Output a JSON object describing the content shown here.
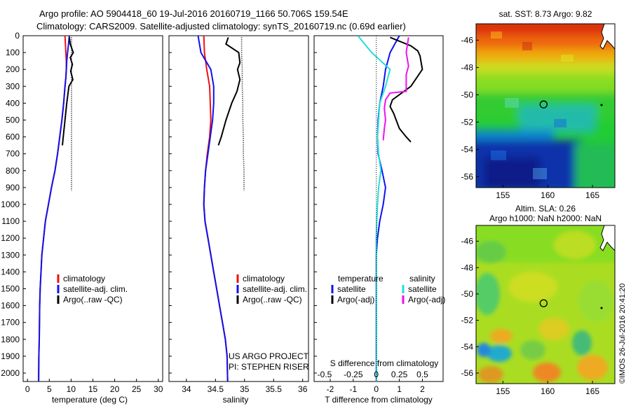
{
  "header": {
    "line1": "Argo profile: AO 5904418_60 19-Jul-2016 20160719_1166 50.706S 159.54E",
    "line2": "Climatology: CARS2009. Satellite-adjusted climatology: synTS_20160719.nc (0.69d earlier)"
  },
  "footer": {
    "project": "US ARGO PROJECT",
    "pi": "PI: STEPHEN RISER",
    "stamp": "©IMOS 26-Jul-2016 20:41:20"
  },
  "colors": {
    "climatology": "#ee1111",
    "satellite": "#1111ee",
    "argo": "#000000",
    "salinity_sat": "#22dddd",
    "salinity_argo": "#ee11ee"
  },
  "chart_data": [
    {
      "id": "temperature",
      "type": "line",
      "xlabel": "temperature (deg C)",
      "ylim": [
        2050,
        0
      ],
      "xlim": [
        -1,
        31
      ],
      "xticks": [
        0,
        5,
        10,
        15,
        20,
        25,
        30
      ],
      "yticks": [
        0,
        100,
        200,
        300,
        400,
        500,
        600,
        700,
        800,
        900,
        1000,
        1100,
        1200,
        1300,
        1400,
        1500,
        1600,
        1700,
        1800,
        1900,
        2000
      ],
      "legend": {
        "position": "center",
        "entries": [
          "climatology",
          "satellite-adj. clim.",
          "Argo(..raw -QC)"
        ]
      },
      "series": [
        {
          "name": "climatology",
          "color": "#ee1111",
          "style": "solid",
          "x": [
            8.6,
            8.7,
            8.8,
            8.9,
            8.9,
            8.8,
            8.6,
            8.3,
            7.9,
            7.4,
            6.9,
            6.3,
            5.5,
            4.8,
            4.1,
            3.7,
            3.3,
            3.1,
            2.9,
            2.8,
            2.7,
            2.6,
            2.55
          ],
          "y": [
            0,
            50,
            100,
            150,
            200,
            250,
            300,
            400,
            500,
            600,
            700,
            800,
            900,
            1000,
            1100,
            1200,
            1300,
            1400,
            1500,
            1600,
            1800,
            1900,
            2050
          ]
        },
        {
          "name": "satellite-adj. clim.",
          "color": "#1111ee",
          "style": "solid",
          "x": [
            9.6,
            9.4,
            9.2,
            9.0,
            8.9,
            8.8,
            8.6,
            8.3,
            7.9,
            7.4,
            6.9,
            6.3,
            5.5,
            4.8,
            4.1,
            3.7,
            3.3,
            3.1,
            2.9,
            2.8,
            2.7,
            2.6,
            2.55
          ],
          "y": [
            0,
            50,
            100,
            150,
            200,
            250,
            300,
            400,
            500,
            600,
            700,
            800,
            900,
            1000,
            1100,
            1200,
            1300,
            1400,
            1500,
            1600,
            1800,
            1900,
            2050
          ]
        },
        {
          "name": "Argo(..raw -QC)",
          "color": "#000000",
          "style": "solid",
          "x": [
            9.6,
            9.8,
            10.5,
            9.8,
            10.3,
            9.9,
            10.4,
            9.5,
            9.0,
            8.6,
            8.2,
            8.0
          ],
          "y": [
            10,
            50,
            100,
            130,
            170,
            210,
            260,
            300,
            400,
            500,
            600,
            650
          ]
        },
        {
          "name": "Argo(..raw -QC)",
          "color": "#000000",
          "style": "dotted",
          "x": [
            10.1,
            10.1,
            10.1,
            10.1,
            10.1,
            10.1,
            10.1,
            10.1,
            10.1,
            10.1
          ],
          "y": [
            10,
            100,
            200,
            300,
            400,
            500,
            600,
            700,
            800,
            920
          ]
        }
      ]
    },
    {
      "id": "salinity",
      "type": "line",
      "xlabel": "salinity",
      "ylim": [
        2050,
        0
      ],
      "xlim": [
        33.7,
        36.1
      ],
      "xticks": [
        34,
        34.5,
        35,
        35.5,
        36
      ],
      "legend": {
        "position": "center",
        "entries": [
          "climatology",
          "satellite-adj. clim.",
          "Argo(..raw -QC)"
        ]
      },
      "series": [
        {
          "name": "climatology",
          "color": "#ee1111",
          "style": "solid",
          "x": [
            34.3,
            34.31,
            34.35,
            34.4,
            34.41,
            34.42,
            34.4,
            34.36,
            34.33,
            34.31,
            34.3,
            34.32,
            34.37,
            34.42,
            34.47,
            34.52,
            34.57,
            34.62,
            34.67,
            34.7,
            34.71
          ],
          "y": [
            0,
            100,
            200,
            300,
            400,
            500,
            600,
            700,
            800,
            900,
            1000,
            1100,
            1200,
            1300,
            1400,
            1500,
            1600,
            1700,
            1800,
            1900,
            2050
          ]
        },
        {
          "name": "satellite-adj. clim.",
          "color": "#1111ee",
          "style": "solid",
          "x": [
            34.2,
            34.25,
            34.42,
            34.47,
            34.47,
            34.45,
            34.41,
            34.37,
            34.33,
            34.31,
            34.3,
            34.32,
            34.37,
            34.42,
            34.47,
            34.52,
            34.57,
            34.62,
            34.67,
            34.7,
            34.71
          ],
          "y": [
            0,
            100,
            200,
            300,
            400,
            500,
            600,
            700,
            800,
            900,
            1000,
            1100,
            1200,
            1300,
            1400,
            1500,
            1600,
            1700,
            1800,
            1900,
            2050
          ]
        },
        {
          "name": "Argo(..raw -QC)",
          "color": "#000000",
          "style": "solid",
          "x": [
            34.72,
            34.68,
            34.9,
            34.92,
            34.88,
            34.92,
            34.87,
            34.78,
            34.68,
            34.6,
            34.55
          ],
          "y": [
            10,
            50,
            100,
            160,
            200,
            260,
            330,
            400,
            500,
            600,
            650
          ]
        },
        {
          "name": "Argo(..raw -QC)",
          "color": "#000000",
          "style": "dotted",
          "x": [
            34.95,
            34.95,
            34.96,
            34.96,
            34.97,
            34.97,
            34.98,
            34.98,
            34.99,
            34.99
          ],
          "y": [
            10,
            100,
            200,
            300,
            400,
            500,
            600,
            700,
            800,
            920
          ]
        }
      ]
    },
    {
      "id": "differences",
      "type": "line",
      "xlabel": "T difference from climatology",
      "xlabel_top": "S difference from climatology",
      "ylim": [
        2050,
        0
      ],
      "xlim": [
        -2.7,
        2.9
      ],
      "xticks": [
        -2,
        -1,
        0,
        1,
        2
      ],
      "top_ticks": [
        "-0.5",
        "-0.25",
        "0",
        "0.25",
        "0.5"
      ],
      "legend": {
        "position": "center",
        "temperature_title": "temperature",
        "salinity_title": "salinity",
        "satellite": "satellite",
        "argo": "Argo(-adj)"
      },
      "series": [
        {
          "name": "satellite",
          "group": "temperature",
          "color": "#1111ee",
          "style": "solid",
          "x": [
            1.0,
            0.6,
            0.4,
            0.3,
            0.15,
            0.08,
            0.05,
            0.08,
            0.25,
            0.4,
            0.3,
            0.15,
            0.05,
            0.0,
            0.0,
            0.0,
            0.0,
            0.0,
            0.0,
            0.0,
            0.0
          ],
          "y": [
            0,
            100,
            200,
            300,
            400,
            500,
            600,
            700,
            800,
            900,
            1000,
            1100,
            1200,
            1300,
            1400,
            1500,
            1600,
            1700,
            1800,
            1900,
            2050
          ]
        },
        {
          "name": "satellite",
          "group": "salinity",
          "color": "#22dddd",
          "style": "solid",
          "x": [
            -0.8,
            -0.2,
            0.6,
            0.4,
            0.15,
            0.1,
            0.05,
            0.1,
            0.2,
            0.1,
            0.05,
            0.02,
            0.0,
            0.0,
            0.0,
            0.0,
            0.0,
            0.0,
            0.0,
            0.0,
            0.0
          ],
          "y": [
            0,
            100,
            200,
            300,
            400,
            500,
            600,
            700,
            800,
            900,
            1000,
            1100,
            1200,
            1300,
            1400,
            1500,
            1600,
            1700,
            1800,
            1900,
            2050
          ]
        },
        {
          "name": "Argo(-adj)",
          "group": "temperature",
          "color": "#000000",
          "style": "solid",
          "x": [
            0.6,
            1.5,
            1.8,
            1.9,
            2.0,
            1.5,
            0.7,
            0.6,
            0.75,
            1.0,
            1.3,
            1.5
          ],
          "y": [
            10,
            60,
            90,
            120,
            200,
            300,
            380,
            420,
            460,
            550,
            600,
            630
          ]
        },
        {
          "name": "Argo(-adj)",
          "group": "salinity",
          "color": "#ee11ee",
          "style": "solid",
          "x": [
            1.4,
            1.3,
            1.4,
            1.3,
            1.3,
            0.6,
            0.4,
            0.35,
            0.4,
            0.35,
            0.3
          ],
          "y": [
            10,
            100,
            180,
            230,
            330,
            340,
            380,
            430,
            500,
            550,
            620
          ]
        }
      ]
    },
    {
      "id": "sst-map",
      "type": "heatmap",
      "title": "sat. SST: 8.73 Argo: 9.82",
      "xticks": [
        155,
        160,
        165
      ],
      "yticks": [
        -46,
        -48,
        -50,
        -52,
        -54,
        -56
      ],
      "xlim": [
        152,
        167.5
      ],
      "ylim": [
        -56.8,
        -44.8
      ],
      "marker": {
        "lon": 159.54,
        "lat": -50.706
      }
    },
    {
      "id": "sla-map",
      "type": "heatmap",
      "title": "Altim. SLA: 0.26",
      "subtitle": "Argo h1000: NaN h2000: NaN",
      "xticks": [
        155,
        160,
        165
      ],
      "yticks": [
        -46,
        -48,
        -50,
        -52,
        -54,
        -56
      ],
      "xlim": [
        152,
        167.5
      ],
      "ylim": [
        -56.8,
        -44.8
      ],
      "marker": {
        "lon": 159.54,
        "lat": -50.706
      }
    }
  ]
}
